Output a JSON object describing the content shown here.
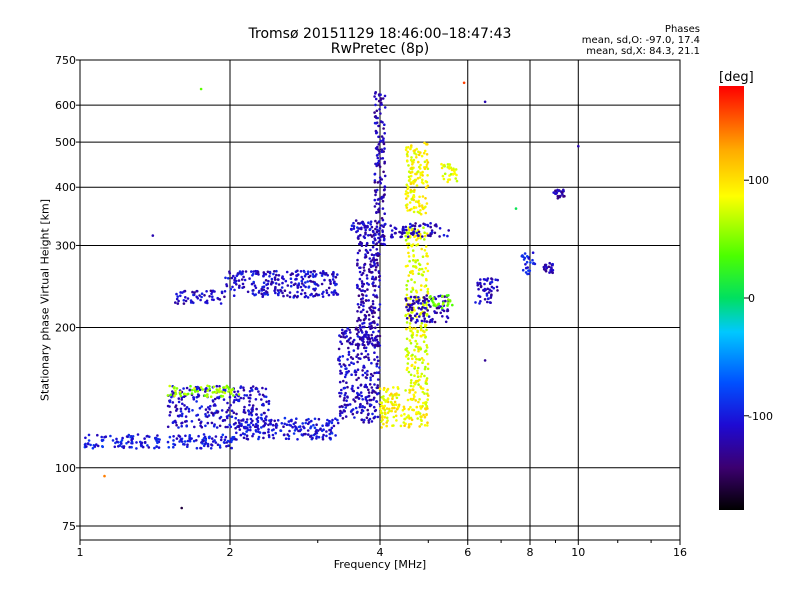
{
  "chart_data": {
    "type": "scatter",
    "title": "Tromsø 20151129 18:46:00–18:47:43",
    "subtitle": "RwPretec (8p)",
    "phases": {
      "header": "Phases",
      "o_text": "mean, sd,O: -97.0, 17.4",
      "x_text": "mean, sd,X:  84.3, 21.1"
    },
    "xlabel": "Frequency [MHz]",
    "ylabel": "Stationary phase Virtual Height [km]",
    "x_scale": "log",
    "y_scale": "log",
    "xlim": [
      1,
      16
    ],
    "ylim": [
      70,
      750
    ],
    "x_ticks": [
      1,
      2,
      4,
      6,
      8,
      10,
      16
    ],
    "y_ticks": [
      75,
      100,
      200,
      300,
      400,
      500,
      600,
      750
    ],
    "grid": true,
    "colorbar": {
      "label": "[deg]",
      "range": [
        -180,
        180
      ],
      "ticks": [
        100,
        0,
        -100
      ]
    },
    "series": [
      {
        "clusters": [
          {
            "x": [
              1.02,
              2.05
            ],
            "y": [
              110,
              118
            ],
            "phase": -100
          },
          {
            "x": [
              2.05,
              3.3
            ],
            "y": [
              115,
              128
            ],
            "phase": -105
          },
          {
            "x": [
              1.5,
              2.4
            ],
            "y": [
              122,
              150
            ],
            "phase": -110
          },
          {
            "x": [
              1.5,
              2.1
            ],
            "y": [
              142,
              150
            ],
            "phase": 60
          },
          {
            "x": [
              1.55,
              1.95
            ],
            "y": [
              225,
              240
            ],
            "phase": -115
          },
          {
            "x": [
              1.95,
              3.3
            ],
            "y": [
              232,
              265
            ],
            "phase": -110
          },
          {
            "x": [
              3.3,
              4.0
            ],
            "y": [
              125,
              200
            ],
            "phase": -115
          },
          {
            "x": [
              3.6,
              4.0
            ],
            "y": [
              180,
              340
            ],
            "phase": -120
          },
          {
            "x": [
              3.9,
              4.1
            ],
            "y": [
              300,
              650
            ],
            "phase": -120
          },
          {
            "x": [
              3.5,
              3.9
            ],
            "y": [
              320,
              340
            ],
            "phase": -110
          },
          {
            "x": [
              4.0,
              5.0
            ],
            "y": [
              122,
              150
            ],
            "phase": 90
          },
          {
            "x": [
              4.5,
              5.0
            ],
            "y": [
              150,
              330
            ],
            "phase": 80
          },
          {
            "x": [
              4.5,
              5.0
            ],
            "y": [
              350,
              500
            ],
            "phase": 90
          },
          {
            "x": [
              4.2,
              5.5
            ],
            "y": [
              312,
              335
            ],
            "phase": -115
          },
          {
            "x": [
              4.5,
              5.5
            ],
            "y": [
              205,
              235
            ],
            "phase": -120
          },
          {
            "x": [
              5.0,
              5.6
            ],
            "y": [
              220,
              235
            ],
            "phase": 45
          },
          {
            "x": [
              5.3,
              5.8
            ],
            "y": [
              410,
              450
            ],
            "phase": 80
          },
          {
            "x": [
              6.2,
              6.9
            ],
            "y": [
              225,
              255
            ],
            "phase": -115
          },
          {
            "x": [
              7.7,
              8.2
            ],
            "y": [
              260,
              290
            ],
            "phase": -100
          },
          {
            "x": [
              8.5,
              8.9
            ],
            "y": [
              262,
              275
            ],
            "phase": -120
          },
          {
            "x": [
              8.9,
              9.4
            ],
            "y": [
              378,
              395
            ],
            "phase": -125
          }
        ]
      }
    ],
    "scattered_points": [
      {
        "x": 1.4,
        "y": 315,
        "phase": -120
      },
      {
        "x": 1.75,
        "y": 650,
        "phase": 40
      },
      {
        "x": 1.6,
        "y": 82,
        "phase": -160
      },
      {
        "x": 1.12,
        "y": 96,
        "phase": 140
      },
      {
        "x": 10.0,
        "y": 490,
        "phase": -120
      },
      {
        "x": 6.5,
        "y": 610,
        "phase": -120
      },
      {
        "x": 5.9,
        "y": 670,
        "phase": 160
      },
      {
        "x": 7.5,
        "y": 360,
        "phase": 5
      },
      {
        "x": 6.5,
        "y": 170,
        "phase": -130
      }
    ]
  }
}
